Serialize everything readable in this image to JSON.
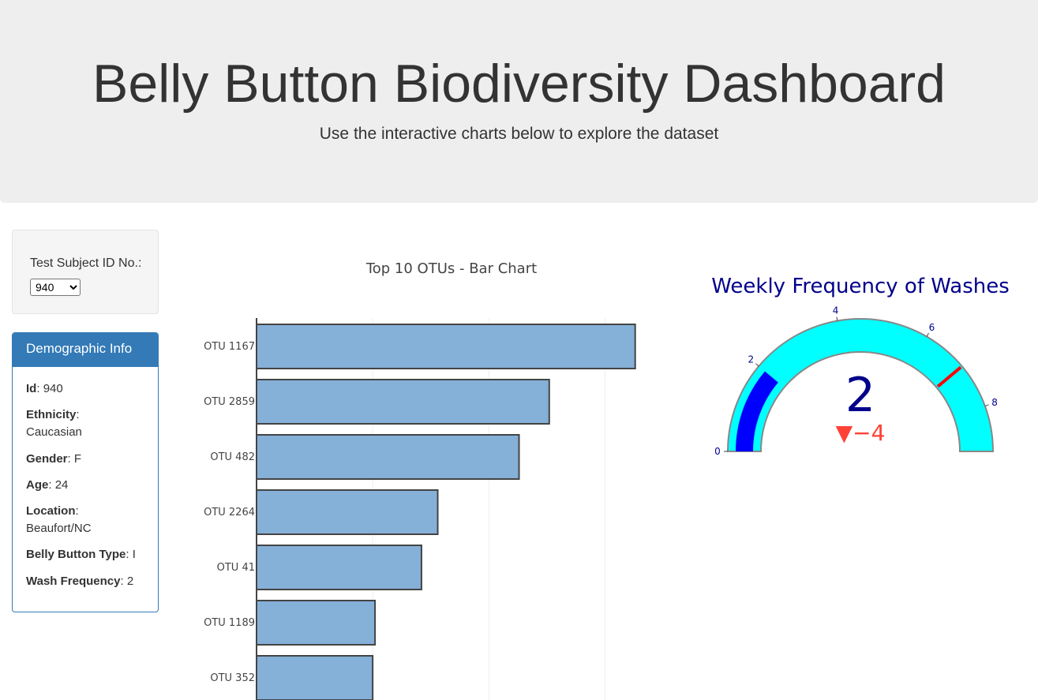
{
  "header": {
    "title": "Belly Button Biodiversity Dashboard",
    "subtitle": "Use the interactive charts below to explore the dataset"
  },
  "selector": {
    "label": "Test Subject ID No.:",
    "selected": "940"
  },
  "demographic": {
    "heading": "Demographic Info",
    "rows": [
      {
        "key": "Id",
        "value": "940"
      },
      {
        "key": "Ethnicity",
        "value": "Caucasian"
      },
      {
        "key": "Gender",
        "value": "F"
      },
      {
        "key": "Age",
        "value": "24"
      },
      {
        "key": "Location",
        "value": "Beaufort/NC"
      },
      {
        "key": "Belly Button Type",
        "value": "I"
      },
      {
        "key": "Wash Frequency",
        "value": "2"
      }
    ]
  },
  "chart_data": [
    {
      "type": "bar",
      "orientation": "horizontal",
      "title": "Top 10 OTUs - Bar Chart",
      "categories": [
        "OTU 1167",
        "OTU 2859",
        "OTU 482",
        "OTU 2264",
        "OTU 41",
        "OTU 1189",
        "OTU 352"
      ],
      "values": [
        163,
        126,
        113,
        78,
        71,
        51,
        50
      ],
      "xlim": [
        0,
        175
      ],
      "grid": true,
      "bar_color": "#85b0d8",
      "bar_outline": "#444444"
    },
    {
      "type": "gauge",
      "title": "Weekly Frequency of Washes",
      "value": 2,
      "delta": -4,
      "delta_text": "▼−4",
      "range": [
        0,
        9
      ],
      "ticks": [
        0,
        2,
        4,
        6,
        8
      ],
      "threshold": 7,
      "bar_color": "#0000ff",
      "band_color": "#00ffff",
      "threshold_color": "#ff0000",
      "title_color": "#00008b",
      "delta_color": "#ff4136"
    }
  ]
}
